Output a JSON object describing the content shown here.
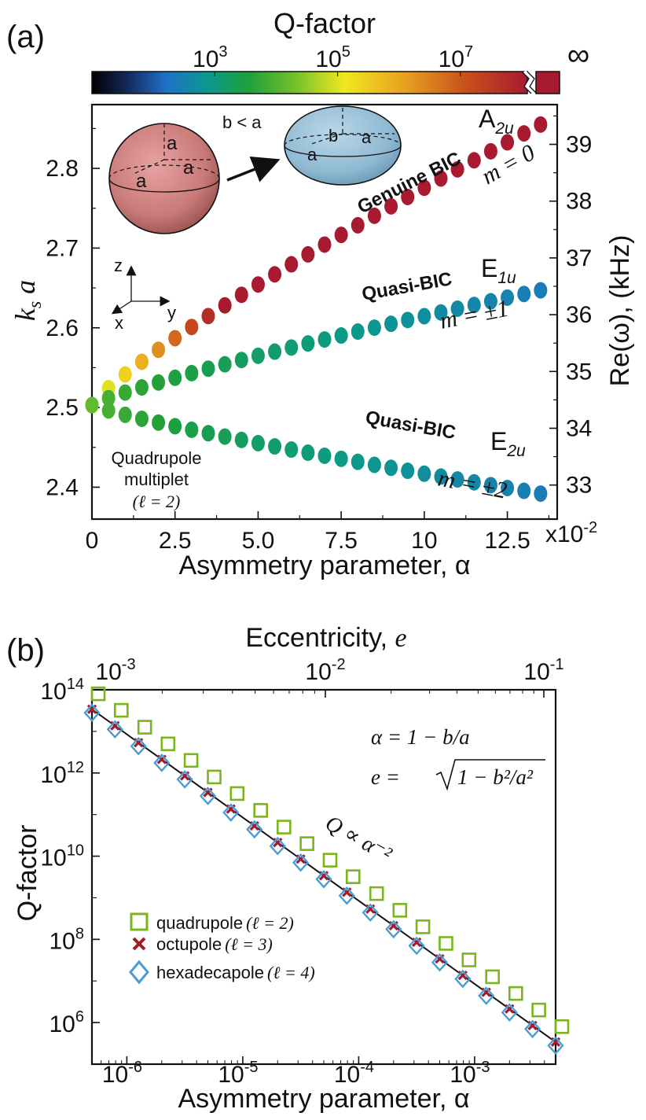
{
  "colorbar": {
    "label": "Q-factor",
    "ticks": [
      {
        "base": "10",
        "exp": "3",
        "q": 1000
      },
      {
        "base": "10",
        "exp": "5",
        "q": 100000
      },
      {
        "base": "10",
        "exp": "7",
        "q": 10000000
      }
    ],
    "infinity_label": "∞",
    "stops": [
      "#000000",
      "#1a2f6e",
      "#1f70c8",
      "#0a9a8a",
      "#1fa03a",
      "#6cbf2c",
      "#f0e81f",
      "#e8a020",
      "#c8501c",
      "#a81a30"
    ]
  },
  "panel_a": {
    "label": "(a)",
    "xlabel": "Asymmetry parameter, α",
    "ylabel_left": "k_s a",
    "ylabel_right": "Re(ω), (kHz)",
    "x_multiplier": {
      "base": "x10",
      "exp": "-2"
    },
    "xticks": [
      "0",
      "2.5",
      "5.0",
      "7.5",
      "10",
      "12.5"
    ],
    "yticks_left": [
      "2.4",
      "2.5",
      "2.6",
      "2.7",
      "2.8"
    ],
    "yticks_right": [
      "33",
      "34",
      "35",
      "36",
      "37",
      "38",
      "39"
    ],
    "inset": {
      "sphere_labels": [
        "a",
        "a",
        "a"
      ],
      "spheroid_labels": [
        "b",
        "a",
        "a"
      ],
      "condition": "b < a",
      "axes": [
        "z",
        "y",
        "x"
      ]
    },
    "annotations": {
      "genuine": "Genuine BIC",
      "genuine_sym": "A",
      "genuine_sub": "2u",
      "genuine_m": "m = 0",
      "quasi1": "Quasi-BIC",
      "quasi1_sym": "E",
      "quasi1_sub": "1u",
      "quasi1_m": "m = ±1",
      "quasi2": "Quasi-BIC",
      "quasi2_sym": "E",
      "quasi2_sub": "2u",
      "quasi2_m": "m = ±2",
      "multiplet_line1": "Quadrupole",
      "multiplet_line2": "multiplet",
      "multiplet_line3": "(ℓ = 2)"
    }
  },
  "panel_b": {
    "label": "(b)",
    "top_label": "Eccentricity, e",
    "xlabel": "Asymmetry parameter, α",
    "ylabel": "Q-factor",
    "top_ticks": [
      {
        "base": "10",
        "exp": "-3"
      },
      {
        "base": "10",
        "exp": "-2"
      },
      {
        "base": "10",
        "exp": "-1"
      }
    ],
    "bottom_ticks": [
      {
        "base": "10",
        "exp": "-6"
      },
      {
        "base": "10",
        "exp": "-5"
      },
      {
        "base": "10",
        "exp": "-4"
      },
      {
        "base": "10",
        "exp": "-3"
      }
    ],
    "yticks": [
      {
        "base": "10",
        "exp": "14"
      },
      {
        "base": "10",
        "exp": "12"
      },
      {
        "base": "10",
        "exp": "10"
      },
      {
        "base": "10",
        "exp": "8"
      },
      {
        "base": "10",
        "exp": "6"
      }
    ],
    "formula1": "α = 1 − b/a",
    "formula2_lhs": "e = ",
    "formula2_rad": "1 − b²/a²",
    "fit_label": "Q ∝ α⁻²",
    "legend": [
      {
        "name": "quadrupole",
        "math": "(ℓ = 2)"
      },
      {
        "name": "octupole",
        "math": "(ℓ = 3)"
      },
      {
        "name": "hexadecapole",
        "math": "(ℓ = 4)"
      }
    ]
  },
  "chart_data": [
    {
      "type": "scatter",
      "xlabel": "Asymmetry parameter, α",
      "ylabel": "k_s a",
      "x_scale_note": "x10^-2",
      "xlim": [
        0,
        0.14
      ],
      "ylim": [
        2.36,
        2.88
      ],
      "ylim_right_kHz": [
        32.4,
        39.7
      ],
      "x": [
        0.0,
        0.005,
        0.01,
        0.015,
        0.02,
        0.025,
        0.03,
        0.035,
        0.04,
        0.045,
        0.05,
        0.055,
        0.06,
        0.065,
        0.07,
        0.075,
        0.08,
        0.085,
        0.09,
        0.095,
        0.1,
        0.105,
        0.11,
        0.115,
        0.12,
        0.125,
        0.13,
        0.135
      ],
      "series": [
        {
          "name": "A2u, m = 0",
          "start": 2.503,
          "end": 2.855,
          "q_start": 10000,
          "q_end": 1e+20
        },
        {
          "name": "E1u, m = ±1",
          "start": 2.503,
          "end": 2.647,
          "q_start": 60000,
          "q_end": 600
        },
        {
          "name": "E2u, m = ±2",
          "start": 2.503,
          "end": 2.392,
          "q_start": 60000,
          "q_end": 600
        }
      ],
      "colorbar": {
        "label": "Q-factor",
        "scale": "log",
        "range": [
          10,
          100000000
        ],
        "extra": "∞"
      }
    },
    {
      "type": "scatter",
      "xscale": "log",
      "yscale": "log",
      "xlabel": "Asymmetry parameter, α",
      "ylabel": "Q-factor",
      "top_axis": "Eccentricity, e",
      "xlim": [
        5e-07,
        0.005
      ],
      "ylim": [
        100000.0,
        100000000000000.0
      ],
      "x": [
        5e-07,
        7.9e-07,
        1.26e-06,
        2e-06,
        3.16e-06,
        5e-06,
        7.9e-06,
        1.26e-05,
        2e-05,
        3.16e-05,
        5e-05,
        7.9e-05,
        0.000126,
        0.0002,
        0.000316,
        0.0005,
        0.00079,
        0.00126,
        0.002,
        0.00316,
        0.005
      ],
      "series": [
        {
          "name": "quadrupole (ℓ = 2)",
          "marker": "square",
          "color": "#7ab51d",
          "coef": 20
        },
        {
          "name": "octupole (ℓ = 3)",
          "marker": "x",
          "color": "#a01c2c",
          "coef": 8.5
        },
        {
          "name": "hexadecapole (ℓ = 4)",
          "marker": "diamond",
          "color": "#4b9cd3",
          "coef": 7
        },
        {
          "name": "fit Q ∝ α⁻²",
          "marker": "line",
          "color": "#111111",
          "coef": 8.5
        }
      ]
    }
  ]
}
